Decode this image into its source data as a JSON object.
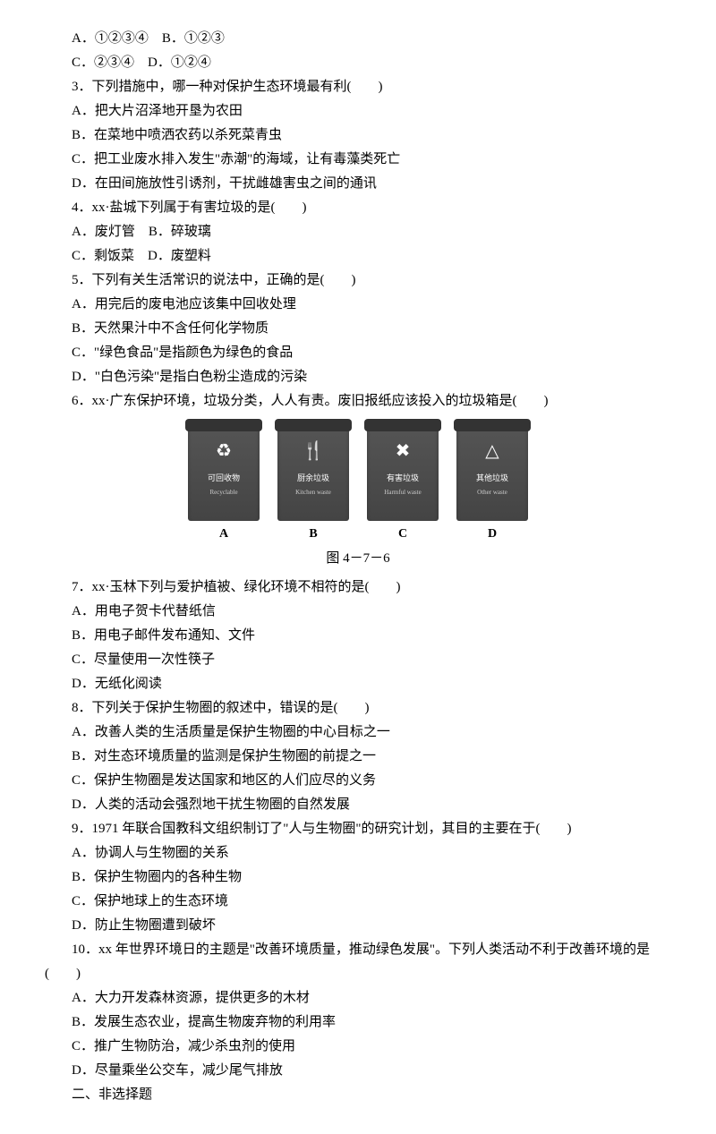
{
  "lines": {
    "l1": "A．①②③④　B．①②③",
    "l2": "C．②③④　D．①②④",
    "q3": "3．下列措施中，哪一种对保护生态环境最有利(　　)",
    "q3a": "A．把大片沼泽地开垦为农田",
    "q3b": "B．在菜地中喷洒农药以杀死菜青虫",
    "q3c": "C．把工业废水排入发生\"赤潮\"的海域，让有毒藻类死亡",
    "q3d": "D．在田间施放性引诱剂，干扰雌雄害虫之间的通讯",
    "q4": "4．xx·盐城下列属于有害垃圾的是(　　)",
    "q4a": "A．废灯管　B．碎玻璃",
    "q4b": "C．剩饭菜　D．废塑料",
    "q5": "5．下列有关生活常识的说法中，正确的是(　　)",
    "q5a": "A．用完后的废电池应该集中回收处理",
    "q5b": "B．天然果汁中不含任何化学物质",
    "q5c": "C．\"绿色食品\"是指颜色为绿色的食品",
    "q5d": "D．\"白色污染\"是指白色粉尘造成的污染",
    "q6": "6．xx·广东保护环境，垃圾分类，人人有责。废旧报纸应该投入的垃圾箱是(　　)",
    "figcap": "图 4－7－6",
    "q7": "7．xx·玉林下列与爱护植被、绿化环境不相符的是(　　)",
    "q7a": "A．用电子贺卡代替纸信",
    "q7b": "B．用电子邮件发布通知、文件",
    "q7c": "C．尽量使用一次性筷子",
    "q7d": "D．无纸化阅读",
    "q8": "8．下列关于保护生物圈的叙述中，错误的是(　　)",
    "q8a": "A．改善人类的生活质量是保护生物圈的中心目标之一",
    "q8b": "B．对生态环境质量的监测是保护生物圈的前提之一",
    "q8c": "C．保护生物圈是发达国家和地区的人们应尽的义务",
    "q8d": "D．人类的活动会强烈地干扰生物圈的自然发展",
    "q9": "9．1971 年联合国教科文组织制订了\"人与生物圈\"的研究计划，其目的主要在于(　　)",
    "q9a": "A．协调人与生物圈的关系",
    "q9b": "B．保护生物圈内的各种生物",
    "q9c": "C．保护地球上的生态环境",
    "q9d": "D．防止生物圈遭到破坏",
    "q10": "10．xx 年世界环境日的主题是\"改善环境质量，推动绿色发展\"。下列人类活动不利于改善环境的是(　　)",
    "q10a": "A．大力开发森林资源，提供更多的木材",
    "q10b": "B．发展生态农业，提高生物废弃物的利用率",
    "q10c": "C．推广生物防治，减少杀虫剂的使用",
    "q10d": "D．尽量乘坐公交车，减少尾气排放",
    "section2": "二、非选择题"
  },
  "bins": [
    {
      "letter": "A",
      "cn": "可回收物",
      "en": "Recyclable",
      "icon": "♻"
    },
    {
      "letter": "B",
      "cn": "厨余垃圾",
      "en": "Kitchen waste",
      "icon": "🍴"
    },
    {
      "letter": "C",
      "cn": "有害垃圾",
      "en": "Harmful waste",
      "icon": "✖"
    },
    {
      "letter": "D",
      "cn": "其他垃圾",
      "en": "Other waste",
      "icon": "△"
    }
  ],
  "style": {
    "body_width": 800,
    "body_height": 1132,
    "font_family": "SimSun",
    "font_size": 15,
    "line_height": 1.8,
    "text_color": "#000000",
    "background_color": "#ffffff",
    "indent_em": 2,
    "bin_color": "#444444",
    "bin_lid_color": "#333333",
    "bin_text_color": "#ffffff"
  }
}
